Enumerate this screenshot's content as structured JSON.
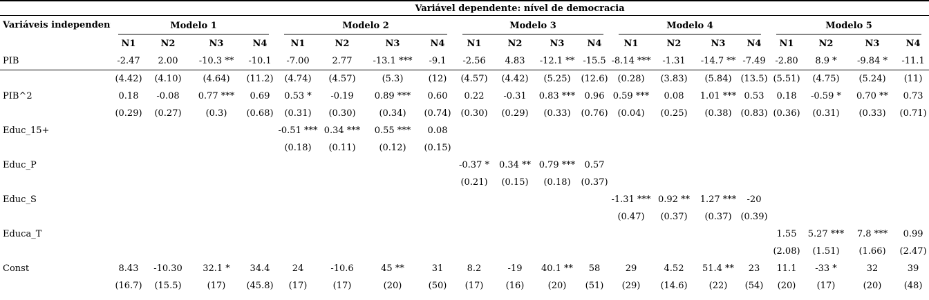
{
  "table": {
    "dependent_header": "Variável dependente: nível de democracia",
    "row_label_header": "Variáveis independentes",
    "models": [
      "Modelo 1",
      "Modelo 2",
      "Modelo 3",
      "Modelo 4",
      "Modelo 5"
    ],
    "sub_columns": [
      "N1",
      "N2",
      "N3",
      "N4"
    ],
    "rows": [
      {
        "label": "PIB",
        "values": [
          "-2.47",
          "2.00",
          "-10.3 **",
          "-10.1",
          "-7.00",
          "2.77",
          "-13.1 ***",
          "-9.1",
          "-2.56",
          "4.83",
          "-12.1 **",
          "-15.5",
          "-8.14 ***",
          "-1.31",
          "-14.7 **",
          "-7.49",
          "-2.80",
          "8.9 *",
          "-9.84 *",
          "-11.1"
        ],
        "errors": [
          "(4.42)",
          "(4.10)",
          "(4.64)",
          "(11.2)",
          "(4.74)",
          "(4.57)",
          "(5.3)",
          "(12)",
          "(4.57)",
          "(4.42)",
          "(5.25)",
          "(12.6)",
          "(0.28)",
          "(3.83)",
          "(5.84)",
          "(13.5)",
          "(5.51)",
          "(4.75)",
          "(5.24)",
          "(11)"
        ]
      },
      {
        "label": "PIB^2",
        "values": [
          "0.18",
          "-0.08",
          "0.77 ***",
          "0.69",
          "0.53 *",
          "-0.19",
          "0.89 ***",
          "0.60",
          "0.22",
          "-0.31",
          "0.83 ***",
          "0.96",
          "0.59 ***",
          "0.08",
          "1.01 ***",
          "0.53",
          "0.18",
          "-0.59 *",
          "0.70 **",
          "0.73"
        ],
        "errors": [
          "(0.29)",
          "(0.27)",
          "(0.3)",
          "(0.68)",
          "(0.31)",
          "(0.30)",
          "(0.34)",
          "(0.74)",
          "(0.30)",
          "(0.29)",
          "(0.33)",
          "(0.76)",
          "(0.04)",
          "(0.25)",
          "(0.38)",
          "(0.83)",
          "(0.36)",
          "(0.31)",
          "(0.33)",
          "(0.71)"
        ]
      },
      {
        "label": "Educ_15+",
        "values": [
          "",
          "",
          "",
          "",
          "-0.51 ***",
          "0.34 ***",
          "0.55 ***",
          "0.08",
          "",
          "",
          "",
          "",
          "",
          "",
          "",
          "",
          "",
          "",
          "",
          ""
        ],
        "errors": [
          "",
          "",
          "",
          "",
          "(0.18)",
          "(0.11)",
          "(0.12)",
          "(0.15)",
          "",
          "",
          "",
          "",
          "",
          "",
          "",
          "",
          "",
          "",
          "",
          ""
        ]
      },
      {
        "label": "Educ_P",
        "values": [
          "",
          "",
          "",
          "",
          "",
          "",
          "",
          "",
          "-0.37 *",
          "0.34 **",
          "0.79 ***",
          "0.57",
          "",
          "",
          "",
          "",
          "",
          "",
          "",
          ""
        ],
        "errors": [
          "",
          "",
          "",
          "",
          "",
          "",
          "",
          "",
          "(0.21)",
          "(0.15)",
          "(0.18)",
          "(0.37)",
          "",
          "",
          "",
          "",
          "",
          "",
          "",
          ""
        ]
      },
      {
        "label": "Educ_S",
        "values": [
          "",
          "",
          "",
          "",
          "",
          "",
          "",
          "",
          "",
          "",
          "",
          "",
          "-1.31 ***",
          "0.92 **",
          "1.27 ***",
          "-20",
          "",
          "",
          "",
          ""
        ],
        "errors": [
          "",
          "",
          "",
          "",
          "",
          "",
          "",
          "",
          "",
          "",
          "",
          "",
          "(0.47)",
          "(0.37)",
          "(0.37)",
          "(0.39)",
          "",
          "",
          "",
          ""
        ]
      },
      {
        "label": "Educa_T",
        "values": [
          "",
          "",
          "",
          "",
          "",
          "",
          "",
          "",
          "",
          "",
          "",
          "",
          "",
          "",
          "",
          "",
          "1.55",
          "5.27 ***",
          "7.8 ***",
          "0.99"
        ],
        "errors": [
          "",
          "",
          "",
          "",
          "",
          "",
          "",
          "",
          "",
          "",
          "",
          "",
          "",
          "",
          "",
          "",
          "(2.08)",
          "(1.51)",
          "(1.66)",
          "(2.47)"
        ]
      },
      {
        "label": "Const",
        "values": [
          "8.43",
          "-10.30",
          "32.1 *",
          "34.4",
          "24",
          "-10.6",
          "45 **",
          "31",
          "8.2",
          "-19",
          "40.1 **",
          "58",
          "29",
          "4.52",
          "51.4 **",
          "23",
          "11.1",
          "-33 *",
          "32",
          "39"
        ],
        "errors": [
          "(16.7)",
          "(15.5)",
          "(17)",
          "(45.8)",
          "(17)",
          "(17)",
          "(20)",
          "(50)",
          "(17)",
          "(16)",
          "(20)",
          "(51)",
          "(29)",
          "(14.6)",
          "(22)",
          "(54)",
          "(20)",
          "(17)",
          "(20)",
          "(48)"
        ]
      }
    ]
  }
}
